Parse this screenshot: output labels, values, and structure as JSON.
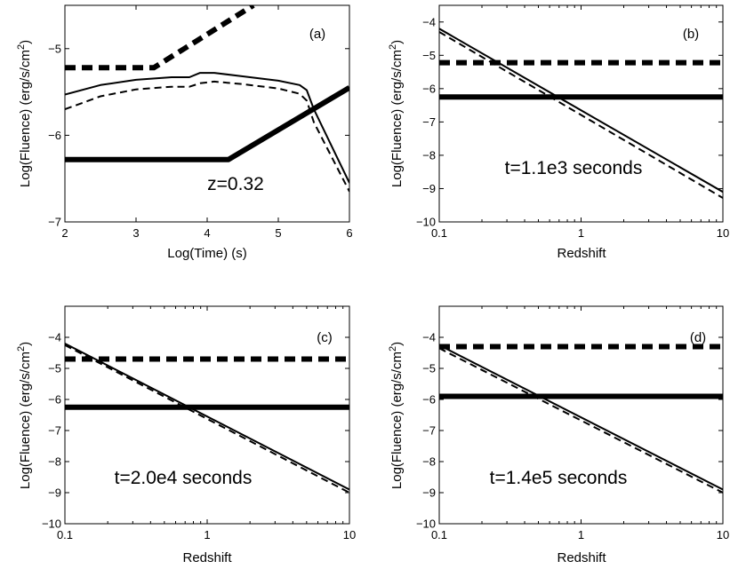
{
  "chart_data": [
    {
      "id": "a",
      "type": "line",
      "panel_label": "(a)",
      "annotation": "z=0.32",
      "xlabel": "Log(Time) (s)",
      "ylabel_prefix": "Log(Fluence) (erg/s/cm",
      "ylabel_sup": "2",
      "ylabel_suffix": ")",
      "xscale": "linear",
      "xlim": [
        2,
        6
      ],
      "ylim": [
        -7,
        -4.5
      ],
      "xticks": [
        2,
        3,
        4,
        5,
        6
      ],
      "xticklabels": [
        "2",
        "3",
        "4",
        "5",
        "6"
      ],
      "yticks": [
        -7,
        -6,
        -5
      ],
      "yticklabels": [
        "−7",
        "−6",
        "−5"
      ],
      "series": [
        {
          "name": "thin solid",
          "style": "thin-solid",
          "x": [
            2,
            2.5,
            3,
            3.5,
            3.75,
            3.9,
            4.1,
            4.5,
            5,
            5.3,
            5.4,
            5.5,
            6
          ],
          "y": [
            -5.53,
            -5.42,
            -5.36,
            -5.33,
            -5.33,
            -5.28,
            -5.28,
            -5.32,
            -5.37,
            -5.42,
            -5.48,
            -5.7,
            -6.55
          ]
        },
        {
          "name": "thin dashed",
          "style": "thin-dashed",
          "x": [
            2,
            2.5,
            3,
            3.5,
            3.75,
            3.9,
            4.1,
            4.5,
            5,
            5.3,
            5.4,
            5.5,
            6
          ],
          "y": [
            -5.7,
            -5.55,
            -5.47,
            -5.44,
            -5.44,
            -5.4,
            -5.38,
            -5.41,
            -5.46,
            -5.52,
            -5.6,
            -5.85,
            -6.65
          ]
        },
        {
          "name": "thick dashed",
          "style": "thick-dashed",
          "x": [
            2,
            3.25,
            4.65
          ],
          "y": [
            -5.22,
            -5.22,
            -4.5
          ]
        },
        {
          "name": "thick solid",
          "style": "thick-solid",
          "x": [
            2,
            4.3,
            6
          ],
          "y": [
            -6.28,
            -6.28,
            -5.45
          ]
        }
      ]
    },
    {
      "id": "b",
      "type": "line",
      "panel_label": "(b)",
      "annotation": "t=1.1e3 seconds",
      "xlabel": "Redshift",
      "ylabel_prefix": "Log(Fluence) (erg/s/cm",
      "ylabel_sup": "2",
      "ylabel_suffix": ")",
      "xscale": "log",
      "xlim": [
        0.1,
        10
      ],
      "ylim": [
        -10,
        -3.5
      ],
      "xticks": [
        0.1,
        1,
        10
      ],
      "xticklabels": [
        "0.1",
        "1",
        "10"
      ],
      "yticks": [
        -10,
        -9,
        -8,
        -7,
        -6,
        -5,
        -4
      ],
      "yticklabels": [
        "−10",
        "−9",
        "−8",
        "−7",
        "−6",
        "−5",
        "−4"
      ],
      "series": [
        {
          "name": "thin solid",
          "style": "thin-solid",
          "x": [
            0.1,
            10
          ],
          "y": [
            -4.2,
            -9.1
          ]
        },
        {
          "name": "thin dashed",
          "style": "thin-dashed",
          "x": [
            0.1,
            10
          ],
          "y": [
            -4.3,
            -9.28
          ]
        },
        {
          "name": "thick dashed",
          "style": "thick-dashed",
          "x": [
            0.1,
            10
          ],
          "y": [
            -5.22,
            -5.22
          ]
        },
        {
          "name": "thick solid",
          "style": "thick-solid",
          "x": [
            0.1,
            10
          ],
          "y": [
            -6.25,
            -6.25
          ]
        }
      ]
    },
    {
      "id": "c",
      "type": "line",
      "panel_label": "(c)",
      "annotation": "t=2.0e4 seconds",
      "xlabel": "Redshift",
      "ylabel_prefix": "Log(Fluence) (erg/s/cm",
      "ylabel_sup": "2",
      "ylabel_suffix": ")",
      "xscale": "log",
      "xlim": [
        0.1,
        10
      ],
      "ylim": [
        -10,
        -3
      ],
      "xticks": [
        0.1,
        1,
        10
      ],
      "xticklabels": [
        "0.1",
        "1",
        "10"
      ],
      "yticks": [
        -10,
        -9,
        -8,
        -7,
        -6,
        -5,
        -4
      ],
      "yticklabels": [
        "−10",
        "−9",
        "−8",
        "−7",
        "−6",
        "−5",
        "−4"
      ],
      "series": [
        {
          "name": "thin solid",
          "style": "thin-solid",
          "x": [
            0.1,
            10
          ],
          "y": [
            -4.2,
            -8.9
          ]
        },
        {
          "name": "thin dashed",
          "style": "thin-dashed",
          "x": [
            0.1,
            10
          ],
          "y": [
            -4.25,
            -9.0
          ]
        },
        {
          "name": "thick dashed",
          "style": "thick-dashed",
          "x": [
            0.1,
            10
          ],
          "y": [
            -4.7,
            -4.7
          ]
        },
        {
          "name": "thick solid",
          "style": "thick-solid",
          "x": [
            0.1,
            10
          ],
          "y": [
            -6.25,
            -6.25
          ]
        }
      ]
    },
    {
      "id": "d",
      "type": "line",
      "panel_label": "(d)",
      "annotation": "t=1.4e5 seconds",
      "xlabel": "Redshift",
      "ylabel_prefix": "Log(Fluence) (erg/s/cm",
      "ylabel_sup": "2",
      "ylabel_suffix": ")",
      "xscale": "log",
      "xlim": [
        0.1,
        10
      ],
      "ylim": [
        -10,
        -3
      ],
      "xticks": [
        0.1,
        1,
        10
      ],
      "xticklabels": [
        "0.1",
        "1",
        "10"
      ],
      "yticks": [
        -10,
        -9,
        -8,
        -7,
        -6,
        -5,
        -4
      ],
      "yticklabels": [
        "−10",
        "−9",
        "−8",
        "−7",
        "−6",
        "−5",
        "−4"
      ],
      "series": [
        {
          "name": "thin solid",
          "style": "thin-solid",
          "x": [
            0.1,
            10
          ],
          "y": [
            -4.25,
            -8.9
          ]
        },
        {
          "name": "thin dashed",
          "style": "thin-dashed",
          "x": [
            0.1,
            10
          ],
          "y": [
            -4.35,
            -9.0
          ]
        },
        {
          "name": "thick dashed",
          "style": "thick-dashed",
          "x": [
            0.1,
            10
          ],
          "y": [
            -4.3,
            -4.3
          ]
        },
        {
          "name": "thick solid",
          "style": "thick-solid",
          "x": [
            0.1,
            10
          ],
          "y": [
            -5.9,
            -5.9
          ]
        }
      ]
    }
  ]
}
